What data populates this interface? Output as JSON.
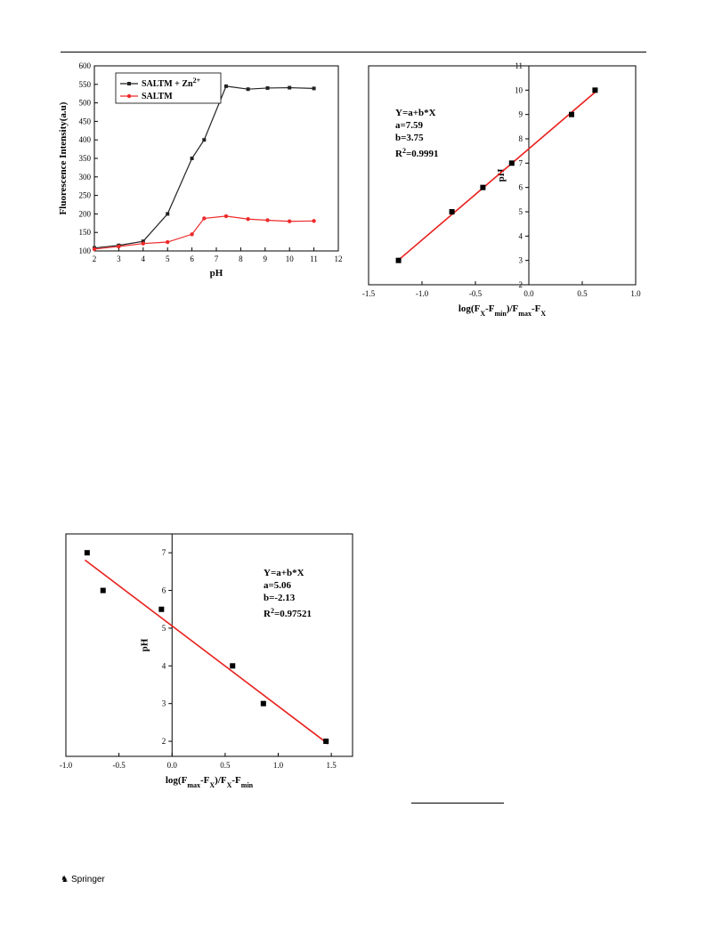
{
  "footer": {
    "publisher": "Springer",
    "logo_icon": "springer-horse-icon"
  },
  "chart_data": [
    {
      "type": "line",
      "xlabel": "pH",
      "ylabel": "Fluorescence Intensity(a.u)",
      "xlim": [
        2,
        12
      ],
      "ylim": [
        100,
        600
      ],
      "xticks": [
        2,
        3,
        4,
        5,
        6,
        7,
        8,
        9,
        10,
        11,
        12
      ],
      "yticks": [
        100,
        150,
        200,
        250,
        300,
        350,
        400,
        450,
        500,
        550,
        600
      ],
      "legend_position": "top-left",
      "series": [
        {
          "name": "SALTM + Zn",
          "name_sup": "2+",
          "color": "#222222",
          "marker": "square",
          "x": [
            2,
            3,
            4,
            5,
            6,
            6.5,
            7.4,
            8.3,
            9.1,
            10,
            11
          ],
          "y": [
            108,
            115,
            126,
            200,
            350,
            400,
            545,
            537,
            540,
            541,
            539
          ]
        },
        {
          "name": "SALTM",
          "color": "#ee2a2a",
          "marker": "circle",
          "x": [
            2,
            3,
            4,
            5,
            6,
            6.5,
            7.4,
            8.3,
            9.1,
            10,
            11
          ],
          "y": [
            105,
            112,
            120,
            124,
            145,
            188,
            194,
            186,
            183,
            180,
            181
          ]
        }
      ]
    },
    {
      "type": "scatter",
      "xlabel": "log(F",
      "xlabel_parts": [
        "log(F",
        "X",
        "-F",
        "min",
        ")/F",
        "max",
        "-F",
        "X"
      ],
      "ylabel": "pH",
      "xlim": [
        -1.5,
        1.0
      ],
      "ylim": [
        2,
        11
      ],
      "xticks": [
        "-1.5",
        "-1.0",
        "-0.5",
        "0.0",
        "0.5",
        "1.0"
      ],
      "yticks": [
        2,
        3,
        4,
        5,
        6,
        7,
        8,
        9,
        10,
        11
      ],
      "points_x": [
        -1.22,
        -0.72,
        -0.43,
        -0.16,
        0.4,
        0.62
      ],
      "points_y": [
        3,
        5,
        6,
        7,
        9,
        10
      ],
      "fit": {
        "a": 7.59,
        "b": 3.75,
        "color": "#e8201c"
      },
      "annotation": {
        "equation": "Y=a+b*X",
        "a_label": "a=7.59",
        "b_label": "b=3.75",
        "r2_prefix": "R",
        "r2_sup": "2",
        "r2_value": "=0.9991"
      }
    },
    {
      "type": "scatter",
      "xlabel_parts": [
        "log(F",
        "max",
        "-F",
        "X",
        ")/F",
        "X",
        "-F",
        "min"
      ],
      "ylabel": "pH",
      "xlim": [
        -1.0,
        1.7
      ],
      "ylim": [
        1.6,
        7.5
      ],
      "xticks": [
        "-1.0",
        "-0.5",
        "0.0",
        "0.5",
        "1.0",
        "1.5"
      ],
      "yticks": [
        2,
        3,
        4,
        5,
        6,
        7
      ],
      "points_x": [
        -0.8,
        -0.65,
        -0.1,
        0.57,
        0.86,
        1.45
      ],
      "points_y": [
        7,
        6,
        5.5,
        4,
        3,
        2
      ],
      "fit": {
        "a": 5.06,
        "b": -2.13,
        "color": "#e8201c"
      },
      "annotation": {
        "equation": "Y=a+b*X",
        "a_label": "a=5.06",
        "b_label": "b=-2.13",
        "r2_prefix": "R",
        "r2_sup": "2",
        "r2_value": "=0.97521"
      }
    }
  ]
}
